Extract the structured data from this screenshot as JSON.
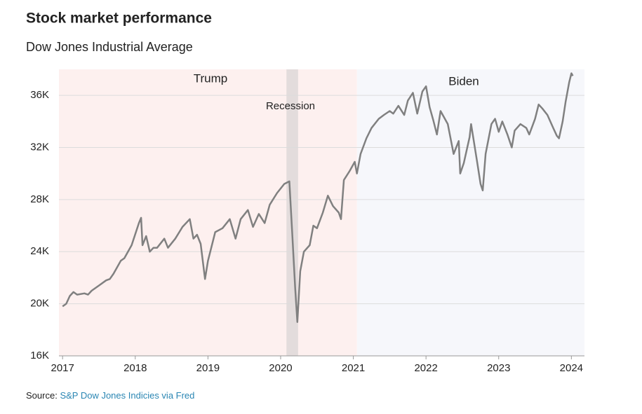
{
  "chart_data": {
    "type": "line",
    "title": "Stock market performance",
    "subtitle": "Dow Jones Industrial Average",
    "source_label": "Source:",
    "source_link": "S&P Dow Jones Indicies via Fred",
    "xlim": [
      2016.95,
      2024.18
    ],
    "xticks": [
      2017,
      2018,
      2019,
      2020,
      2021,
      2022,
      2023,
      2024
    ],
    "ylim": [
      16000,
      38000
    ],
    "yticks": [
      {
        "value": 16000,
        "label": "16K"
      },
      {
        "value": 20000,
        "label": "20K"
      },
      {
        "value": 24000,
        "label": "24K"
      },
      {
        "value": 28000,
        "label": "28K"
      },
      {
        "value": 32000,
        "label": "32K"
      },
      {
        "value": 36000,
        "label": "36K"
      }
    ],
    "grid": true,
    "periods": [
      {
        "label": "Trump",
        "start": 2016.95,
        "end": 2021.05,
        "color": "#fdf0ef"
      },
      {
        "label": "Biden",
        "start": 2021.05,
        "end": 2024.18,
        "color": "#f6f7fb"
      },
      {
        "label": "Recession",
        "start": 2020.08,
        "end": 2020.24,
        "color": "#e3dcdc"
      }
    ],
    "x": [
      2017.0,
      2017.05,
      2017.1,
      2017.15,
      2017.2,
      2017.3,
      2017.35,
      2017.4,
      2017.5,
      2017.6,
      2017.65,
      2017.7,
      2017.8,
      2017.85,
      2017.95,
      2018.05,
      2018.08,
      2018.1,
      2018.15,
      2018.2,
      2018.25,
      2018.3,
      2018.4,
      2018.45,
      2018.55,
      2018.65,
      2018.75,
      2018.8,
      2018.85,
      2018.9,
      2018.96,
      2019.0,
      2019.1,
      2019.2,
      2019.3,
      2019.38,
      2019.45,
      2019.55,
      2019.62,
      2019.7,
      2019.78,
      2019.85,
      2019.95,
      2020.05,
      2020.12,
      2020.16,
      2020.2,
      2020.23,
      2020.27,
      2020.32,
      2020.4,
      2020.45,
      2020.5,
      2020.58,
      2020.65,
      2020.72,
      2020.8,
      2020.83,
      2020.87,
      2020.95,
      2021.02,
      2021.05,
      2021.1,
      2021.18,
      2021.25,
      2021.35,
      2021.42,
      2021.5,
      2021.55,
      2021.62,
      2021.7,
      2021.75,
      2021.82,
      2021.88,
      2021.95,
      2022.0,
      2022.05,
      2022.1,
      2022.15,
      2022.2,
      2022.3,
      2022.38,
      2022.45,
      2022.47,
      2022.52,
      2022.6,
      2022.62,
      2022.7,
      2022.75,
      2022.78,
      2022.82,
      2022.9,
      2022.95,
      2023.0,
      2023.05,
      2023.12,
      2023.18,
      2023.22,
      2023.3,
      2023.38,
      2023.42,
      2023.5,
      2023.55,
      2023.6,
      2023.67,
      2023.75,
      2023.8,
      2023.83,
      2023.88,
      2023.92,
      2023.97,
      2024.0,
      2024.02
    ],
    "series": [
      {
        "name": "Dow Jones Industrial Average",
        "color": "#808080",
        "values": [
          19800,
          20000,
          20600,
          20900,
          20700,
          20800,
          20700,
          21000,
          21400,
          21800,
          21900,
          22300,
          23300,
          23500,
          24500,
          26200,
          26600,
          24500,
          25200,
          24000,
          24300,
          24300,
          25000,
          24300,
          25000,
          25900,
          26500,
          25000,
          25300,
          24600,
          21900,
          23300,
          25500,
          25800,
          26500,
          25000,
          26500,
          27200,
          25900,
          26900,
          26200,
          27600,
          28500,
          29200,
          29400,
          25400,
          21200,
          18600,
          22500,
          24000,
          24500,
          26000,
          25800,
          27000,
          28300,
          27500,
          27000,
          26500,
          29500,
          30200,
          30900,
          30000,
          31500,
          32700,
          33500,
          34200,
          34500,
          34800,
          34600,
          35200,
          34500,
          35600,
          36200,
          34600,
          36300,
          36700,
          35100,
          34100,
          33000,
          34800,
          33800,
          31500,
          32500,
          30000,
          30800,
          32800,
          33800,
          31000,
          29200,
          28700,
          31500,
          33800,
          34200,
          33200,
          34000,
          33000,
          32000,
          33300,
          33800,
          33500,
          33000,
          34200,
          35300,
          35000,
          34500,
          33500,
          32900,
          32700,
          34000,
          35500,
          37000,
          37700,
          37500
        ]
      }
    ]
  }
}
